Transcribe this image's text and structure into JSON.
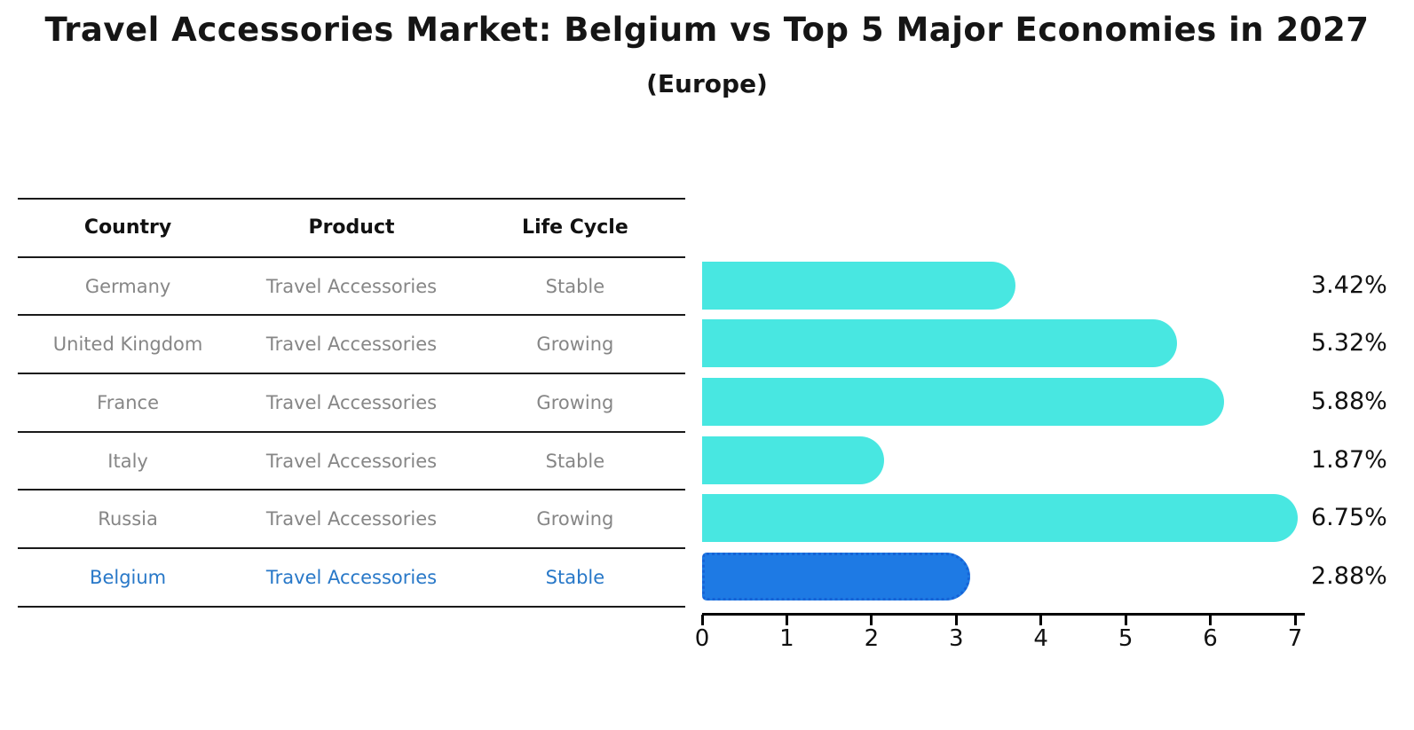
{
  "title": "Travel Accessories Market: Belgium vs Top 5 Major Economies in 2027",
  "subtitle": "(Europe)",
  "table": {
    "headers": [
      "Country",
      "Product",
      "Life Cycle"
    ],
    "rows": [
      {
        "country": "Germany",
        "product": "Travel Accessories",
        "life_cycle": "Stable",
        "highlight": false
      },
      {
        "country": "United Kingdom",
        "product": "Travel Accessories",
        "life_cycle": "Growing",
        "highlight": false
      },
      {
        "country": "France",
        "product": "Travel Accessories",
        "life_cycle": "Growing",
        "highlight": false
      },
      {
        "country": "Italy",
        "product": "Travel Accessories",
        "life_cycle": "Stable",
        "highlight": false
      },
      {
        "country": "Russia",
        "product": "Travel Accessories",
        "life_cycle": "Growing",
        "highlight": false
      },
      {
        "country": "Belgium",
        "product": "Travel Accessories",
        "life_cycle": "Stable",
        "highlight": true
      }
    ]
  },
  "chart_data": {
    "type": "bar",
    "orientation": "horizontal",
    "title": "Travel Accessories Market: Belgium vs Top 5 Major Economies in 2027 (Europe)",
    "categories": [
      "Germany",
      "United Kingdom",
      "France",
      "Italy",
      "Russia",
      "Belgium"
    ],
    "values": [
      3.42,
      5.32,
      5.88,
      1.87,
      6.75,
      2.88
    ],
    "value_labels": [
      "3.42%",
      "5.32%",
      "5.88%",
      "1.87%",
      "6.75%",
      "2.88%"
    ],
    "xlabel": "",
    "ylabel": "",
    "xlim": [
      0,
      7
    ],
    "x_ticks": [
      0,
      1,
      2,
      3,
      4,
      5,
      6,
      7
    ],
    "grid": false,
    "legend": false,
    "highlight_index": 5
  },
  "colors": {
    "bar": "#48E7E1",
    "highlight_bar": "#1E7AE4",
    "highlight_border": "#1663D6",
    "highlight_text": "#2878C8",
    "row_text": "#868686",
    "header_text": "#111111",
    "axis": "#000000"
  }
}
